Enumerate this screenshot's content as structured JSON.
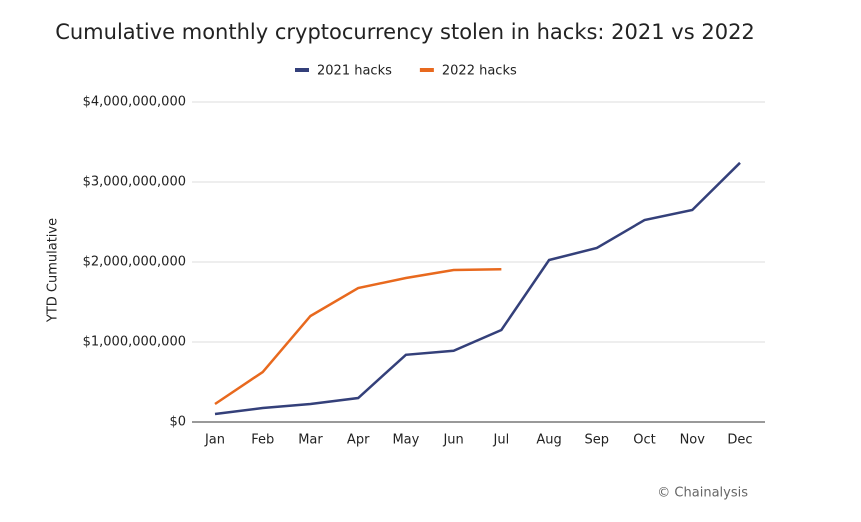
{
  "chart_data": {
    "type": "line",
    "title": "Cumulative monthly cryptocurrency stolen in hacks: 2021 vs 2022",
    "y_label": "YTD Cumulative",
    "source": "© Chainalysis",
    "categories": [
      "Jan",
      "Feb",
      "Mar",
      "Apr",
      "May",
      "Jun",
      "Jul",
      "Aug",
      "Sep",
      "Oct",
      "Nov",
      "Dec"
    ],
    "series": [
      {
        "name": "2021 hacks",
        "color": "#34407a",
        "values": [
          100000000,
          175000000,
          225000000,
          300000000,
          840000000,
          890000000,
          1150000000,
          2025000000,
          2175000000,
          2525000000,
          2650000000,
          3240000000
        ]
      },
      {
        "name": "2022 hacks",
        "color": "#e8691e",
        "values": [
          225000000,
          625000000,
          1325000000,
          1675000000,
          1800000000,
          1900000000,
          1910000000,
          null,
          null,
          null,
          null,
          null
        ]
      }
    ],
    "ylim": [
      0,
      4000000000
    ],
    "yticks": [
      {
        "value": 0,
        "label": "$0"
      },
      {
        "value": 1000000000,
        "label": "$1,000,000,000"
      },
      {
        "value": 2000000000,
        "label": "$2,000,000,000"
      },
      {
        "value": 3000000000,
        "label": "$3,000,000,000"
      },
      {
        "value": 4000000000,
        "label": "$4,000,000,000"
      }
    ],
    "grid": true,
    "legend": "top"
  }
}
